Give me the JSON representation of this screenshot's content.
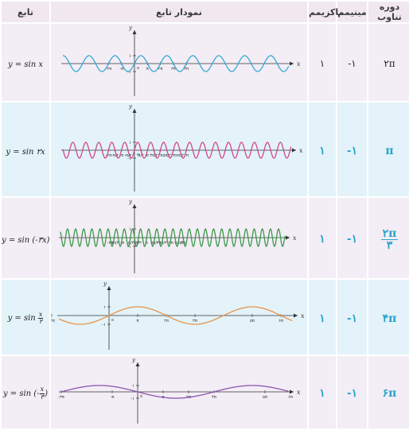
{
  "header": {
    "function": "تابع",
    "graph": "نمودار تابع",
    "max": "ماکزیمم",
    "min": "مینیمم",
    "period": "دوره تناوب"
  },
  "rows": [
    {
      "func_prefix": "y = sin ",
      "func_arg": "x",
      "max": "۱",
      "min": "-۱",
      "period": "۲π",
      "color": "#36a9d6",
      "x_ticks": [
        "-۲π",
        "-π",
        "π",
        "۲π",
        "۳π",
        "۴π"
      ],
      "y_ticks": [
        "۱",
        "-۱"
      ],
      "x_label": "x",
      "y_label": "y",
      "origin_label": "o"
    },
    {
      "func_prefix": "y = sin ",
      "func_arg": "۲x",
      "max": "۱",
      "min": "-۱",
      "period": "π",
      "color": "#d2478e",
      "x_ticks": [
        "-۲π",
        "-π/۲",
        "-π",
        "-π/۲",
        "π/۲",
        "π",
        "۳π/۲",
        "۲π",
        "۵π/۲",
        "۳π",
        "۷π/۲",
        "۴π"
      ],
      "y_ticks": [
        "۱",
        "-۱"
      ],
      "x_label": "x",
      "y_label": "y",
      "origin_label": "o"
    },
    {
      "func_prefix": "y = sin (",
      "func_arg": "-۳x",
      "func_suffix": ")",
      "max": "۱",
      "min": "-۱",
      "period_num": "۲π",
      "period_den": "۳",
      "color": "#3b9a4a",
      "x_ticks": [
        "-۲π",
        "-۵π/۳",
        "-π",
        "-π/۳",
        "π/۳",
        "π",
        "۵π/۳",
        "۲π",
        "۷π/۳",
        "۳π",
        "۱۱π/۳",
        "۴π"
      ],
      "y_ticks": [
        "۱",
        "-۱"
      ],
      "x_label": "x",
      "y_label": "y",
      "origin_label": "o"
    },
    {
      "func_prefix": "y = sin",
      "func_num": "x",
      "func_den": "۲",
      "max": "۱",
      "min": "-۱",
      "period": "۴π",
      "color": "#e8944a",
      "x_ticks": [
        "-۲π",
        "π",
        "۲π",
        "۳π",
        "۵π",
        "۶π"
      ],
      "y_ticks": [
        "۱",
        "-۱"
      ],
      "x_label": "x",
      "y_label": "y",
      "origin_label": "o"
    },
    {
      "func_prefix": "y = sin (-",
      "func_num": "x",
      "func_den": "۳",
      "func_suffix": ")",
      "max": "۱",
      "min": "-۱",
      "period": "۶π",
      "color": "#8a55b0",
      "x_ticks": [
        "-۳π",
        "-π",
        "π",
        "۲π",
        "۳π",
        "۵π",
        "۶π",
        "۷π"
      ],
      "y_ticks": [
        "۱",
        "-۱"
      ],
      "x_label": "x",
      "y_label": "y",
      "origin_label": "o"
    }
  ]
}
